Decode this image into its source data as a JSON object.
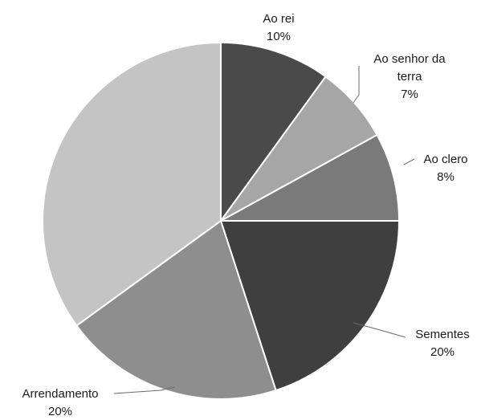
{
  "chart_data": {
    "type": "pie",
    "start_angle_deg": 0,
    "direction": "clockwise",
    "slices": [
      {
        "key": "ao_rei",
        "name": "Ao rei",
        "value": 10,
        "value_label": "10%",
        "color": "#4a4a4a"
      },
      {
        "key": "ao_senhor",
        "name": "Ao senhor da terra",
        "name_lines": [
          "Ao senhor da",
          "terra"
        ],
        "value": 7,
        "value_label": "7%",
        "color": "#a6a6a6"
      },
      {
        "key": "ao_clero",
        "name": "Ao clero",
        "value": 8,
        "value_label": "8%",
        "color": "#7a7a7a"
      },
      {
        "key": "sementes",
        "name": "Sementes",
        "value": 20,
        "value_label": "20%",
        "color": "#3f3f3f"
      },
      {
        "key": "arrendamento",
        "name": "Arrendamento",
        "value": 20,
        "value_label": "20%",
        "color": "#8e8e8e"
      },
      {
        "key": "unlabeled",
        "name": "",
        "value": 35,
        "value_label": "",
        "color": "#c4c4c4"
      }
    ]
  }
}
